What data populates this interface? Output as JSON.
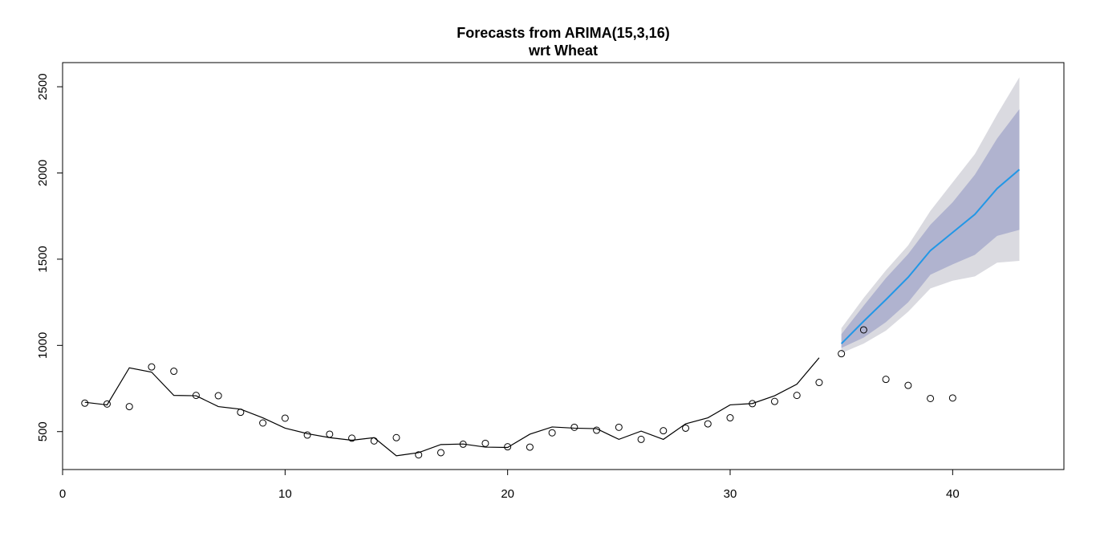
{
  "chart_data": {
    "type": "line",
    "title": "Forecasts from ARIMA(15,3,16)",
    "subtitle": "wrt  Wheat",
    "xlabel": "",
    "ylabel": "",
    "xlim": [
      0,
      45
    ],
    "ylim": [
      280,
      2640
    ],
    "x_ticks": [
      0,
      10,
      20,
      30,
      40
    ],
    "y_ticks": [
      500,
      1000,
      1500,
      2000,
      2500
    ],
    "grid": false,
    "legend": "none",
    "colors": {
      "fitted": "#000000",
      "points": "#000000",
      "forecast": "#2297e6",
      "band80": "#b0b3cf",
      "band95": "#dadae0"
    },
    "fitted_line": {
      "x": [
        1,
        2,
        3,
        4,
        5,
        6,
        7,
        8,
        9,
        10,
        11,
        12,
        13,
        14,
        15,
        16,
        17,
        18,
        19,
        20,
        21,
        22,
        23,
        24,
        25,
        26,
        27,
        28,
        29,
        30,
        31,
        32,
        33,
        34
      ],
      "y": [
        670,
        655,
        870,
        845,
        710,
        708,
        645,
        630,
        580,
        520,
        488,
        465,
        450,
        465,
        360,
        378,
        425,
        428,
        410,
        408,
        485,
        527,
        520,
        517,
        455,
        503,
        455,
        545,
        580,
        655,
        663,
        708,
        775,
        928
      ]
    },
    "observed_points": {
      "x": [
        1,
        2,
        3,
        4,
        5,
        6,
        7,
        8,
        9,
        10,
        11,
        12,
        13,
        14,
        15,
        16,
        17,
        18,
        19,
        20,
        21,
        22,
        23,
        24,
        25,
        26,
        27,
        28,
        29,
        30,
        31,
        32,
        33,
        34,
        35,
        36,
        37,
        38,
        39,
        40
      ],
      "y": [
        665,
        660,
        645,
        875,
        850,
        710,
        708,
        612,
        550,
        578,
        480,
        485,
        462,
        446,
        465,
        365,
        378,
        427,
        432,
        412,
        410,
        493,
        525,
        508,
        525,
        455,
        505,
        520,
        545,
        580,
        662,
        675,
        710,
        785,
        952,
        1090,
        803,
        768,
        692,
        695
      ]
    },
    "forecast": {
      "x": [
        35,
        36,
        37,
        38,
        39,
        40,
        41,
        42,
        43
      ],
      "mean": [
        1010,
        1140,
        1265,
        1395,
        1550,
        1655,
        1760,
        1910,
        2020
      ],
      "lo80": [
        985,
        1045,
        1135,
        1250,
        1410,
        1470,
        1525,
        1635,
        1670
      ],
      "hi80": [
        1065,
        1230,
        1390,
        1530,
        1700,
        1830,
        1990,
        2200,
        2370
      ],
      "lo95": [
        955,
        1010,
        1085,
        1195,
        1330,
        1375,
        1400,
        1480,
        1490
      ],
      "hi95": [
        1100,
        1275,
        1435,
        1580,
        1780,
        1945,
        2110,
        2340,
        2555
      ]
    }
  }
}
